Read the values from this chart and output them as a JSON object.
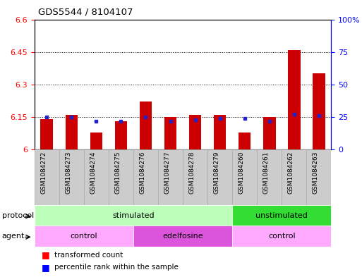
{
  "title": "GDS5544 / 8104107",
  "samples": [
    "GSM1084272",
    "GSM1084273",
    "GSM1084274",
    "GSM1084275",
    "GSM1084276",
    "GSM1084277",
    "GSM1084278",
    "GSM1084279",
    "GSM1084260",
    "GSM1084261",
    "GSM1084262",
    "GSM1084263"
  ],
  "red_values": [
    6.14,
    6.16,
    6.08,
    6.13,
    6.22,
    6.15,
    6.16,
    6.16,
    6.08,
    6.15,
    6.46,
    6.35
  ],
  "blue_values": [
    25,
    25,
    22,
    22,
    25,
    22,
    23,
    24,
    24,
    22,
    27,
    26
  ],
  "ylim_left": [
    6.0,
    6.6
  ],
  "ylim_right": [
    0,
    100
  ],
  "yticks_left": [
    6.0,
    6.15,
    6.3,
    6.45,
    6.6
  ],
  "yticks_right": [
    0,
    25,
    50,
    75,
    100
  ],
  "ytick_labels_left": [
    "6",
    "6.15",
    "6.3",
    "6.45",
    "6.6"
  ],
  "ytick_labels_right": [
    "0",
    "25",
    "50",
    "75",
    "100%"
  ],
  "hlines": [
    6.15,
    6.3,
    6.45
  ],
  "bar_color": "#cc0000",
  "dot_color": "#2222cc",
  "protocol_groups": [
    {
      "label": "stimulated",
      "start": 0,
      "end": 7,
      "color": "#bbffbb"
    },
    {
      "label": "unstimulated",
      "start": 8,
      "end": 11,
      "color": "#33dd33"
    }
  ],
  "agent_groups": [
    {
      "label": "control",
      "start": 0,
      "end": 3,
      "color": "#ffaaff"
    },
    {
      "label": "edelfosine",
      "start": 4,
      "end": 7,
      "color": "#dd55dd"
    },
    {
      "label": "control",
      "start": 8,
      "end": 11,
      "color": "#ffaaff"
    }
  ],
  "legend_red": "transformed count",
  "legend_blue": "percentile rank within the sample",
  "bar_width": 0.5,
  "label_cell_color": "#cccccc",
  "label_cell_edge": "#aaaaaa"
}
